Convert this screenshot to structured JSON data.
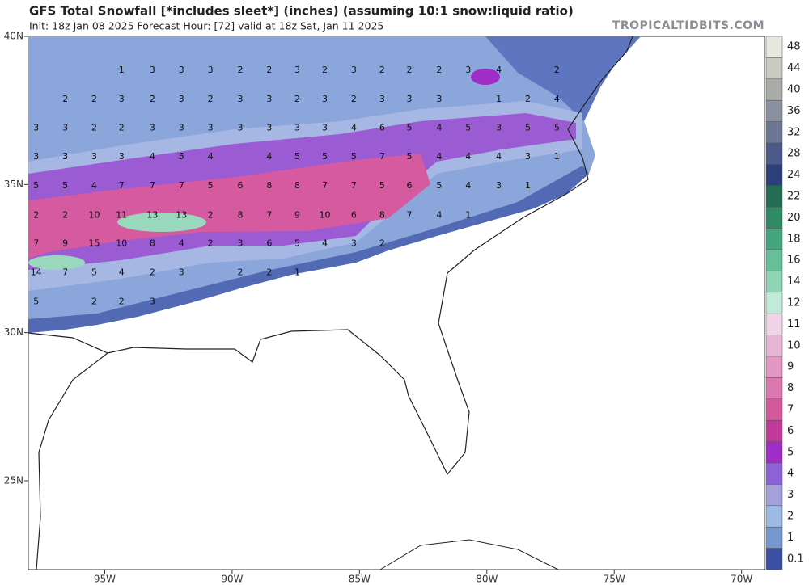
{
  "header": {
    "title": "GFS Total Snowfall [*includes sleet*] (inches) (assuming 10:1 snow:liquid ratio)",
    "subtitle": "Init: 18z Jan 08 2025   Forecast Hour: [72]   valid at 18z Sat, Jan 11 2025",
    "source": "TROPICALTIDBITS.COM"
  },
  "map": {
    "xlim": [
      -98,
      -69.1
    ],
    "ylim": [
      22,
      40
    ],
    "xticks": [
      {
        "value": -95,
        "label": "95W"
      },
      {
        "value": -90,
        "label": "90W"
      },
      {
        "value": -85,
        "label": "85W"
      },
      {
        "value": -80,
        "label": "80W"
      },
      {
        "value": -75,
        "label": "75W"
      },
      {
        "value": -70,
        "label": "70W"
      }
    ],
    "yticks": [
      {
        "value": 40,
        "label": "40N"
      },
      {
        "value": 35,
        "label": "35N"
      },
      {
        "value": 30,
        "label": "30N"
      },
      {
        "value": 25,
        "label": "25N"
      }
    ],
    "labels": [
      {
        "lat": 38.85,
        "lon": [
          -94.34,
          -93.13,
          -91.99,
          -90.85,
          -89.68,
          -88.54,
          -87.44,
          -86.36,
          -85.22,
          -84.11,
          -83.04,
          -81.87,
          -80.73,
          -79.53,
          -77.25
        ],
        "values": [
          1,
          3,
          3,
          3,
          2,
          2,
          3,
          2,
          3,
          2,
          2,
          2,
          3,
          4,
          2
        ]
      },
      {
        "lat": 37.87,
        "lon": [
          -96.55,
          -95.41,
          -94.34,
          -93.13,
          -91.99,
          -90.85,
          -89.68,
          -88.54,
          -87.44,
          -86.36,
          -85.22,
          -84.11,
          -83.04,
          -81.87,
          -79.53,
          -78.39,
          -77.25
        ],
        "values": [
          2,
          2,
          3,
          2,
          3,
          2,
          3,
          3,
          2,
          3,
          2,
          3,
          3,
          3,
          1,
          2,
          4
        ]
      },
      {
        "lat": 36.9,
        "lon": [
          -97.69,
          -96.55,
          -95.41,
          -94.34,
          -93.13,
          -91.99,
          -90.85,
          -89.68,
          -88.54,
          -87.44,
          -86.36,
          -85.22,
          -84.11,
          -83.04,
          -81.87,
          -80.73,
          -79.53,
          -78.39,
          -77.25
        ],
        "values": [
          3,
          3,
          2,
          2,
          3,
          3,
          3,
          3,
          3,
          3,
          3,
          4,
          6,
          5,
          4,
          5,
          3,
          5,
          5
        ]
      },
      {
        "lat": 35.93,
        "lon": [
          -97.69,
          -96.55,
          -95.41,
          -94.34,
          -93.13,
          -91.99,
          -90.85,
          -88.54,
          -87.44,
          -86.36,
          -85.22,
          -84.11,
          -83.04,
          -81.87,
          -80.73,
          -79.53,
          -78.39,
          -77.25
        ],
        "values": [
          3,
          3,
          3,
          3,
          4,
          5,
          4,
          4,
          5,
          5,
          5,
          7,
          5,
          4,
          4,
          4,
          3,
          1
        ]
      },
      {
        "lat": 34.95,
        "lon": [
          -97.69,
          -96.55,
          -95.41,
          -94.34,
          -93.13,
          -91.99,
          -90.85,
          -89.68,
          -88.54,
          -87.44,
          -86.36,
          -85.22,
          -84.11,
          -83.04,
          -81.87,
          -80.73,
          -79.53,
          -78.39
        ],
        "values": [
          5,
          5,
          4,
          7,
          7,
          7,
          5,
          6,
          8,
          8,
          7,
          7,
          5,
          6,
          5,
          4,
          3,
          1
        ]
      },
      {
        "lat": 33.96,
        "lon": [
          -97.69,
          -96.55,
          -95.41,
          -94.34,
          -93.13,
          -91.99,
          -90.85,
          -89.68,
          -88.54,
          -87.44,
          -86.36,
          -85.22,
          -84.11,
          -83.04,
          -81.87,
          -80.73
        ],
        "values": [
          2,
          2,
          10,
          11,
          13,
          13,
          2,
          8,
          7,
          9,
          10,
          6,
          8,
          7,
          4,
          1
        ]
      },
      {
        "lat": 33.0,
        "lon": [
          -97.69,
          -96.55,
          -95.41,
          -94.34,
          -93.13,
          -91.99,
          -90.85,
          -89.68,
          -88.54,
          -87.44,
          -86.36,
          -85.22,
          -84.11
        ],
        "values": [
          7,
          9,
          15,
          10,
          8,
          4,
          2,
          3,
          6,
          5,
          4,
          3,
          2
        ]
      },
      {
        "lat": 32.02,
        "lon": [
          -97.69,
          -96.55,
          -95.41,
          -94.34,
          -93.13,
          -91.99,
          -89.68,
          -88.54,
          -87.44
        ],
        "values": [
          14,
          7,
          5,
          4,
          2,
          3,
          2,
          2,
          1
        ]
      },
      {
        "lat": 31.04,
        "lon": [
          -97.69,
          -95.41,
          -94.34,
          -93.13
        ],
        "values": [
          5,
          2,
          2,
          3
        ]
      }
    ]
  },
  "colorbar": {
    "levels": [
      {
        "value": 48,
        "label": "48"
      },
      {
        "value": 44,
        "label": "44"
      },
      {
        "value": 40,
        "label": "40"
      },
      {
        "value": 36,
        "label": "36"
      },
      {
        "value": 32,
        "label": "32"
      },
      {
        "value": 28,
        "label": "28"
      },
      {
        "value": 24,
        "label": "24"
      },
      {
        "value": 22,
        "label": "22"
      },
      {
        "value": 20,
        "label": "20"
      },
      {
        "value": 18,
        "label": "18"
      },
      {
        "value": 16,
        "label": "16"
      },
      {
        "value": 14,
        "label": "14"
      },
      {
        "value": 12,
        "label": "12"
      },
      {
        "value": 11,
        "label": "11"
      },
      {
        "value": 10,
        "label": "10"
      },
      {
        "value": 9,
        "label": "9"
      },
      {
        "value": 8,
        "label": "8"
      },
      {
        "value": 7,
        "label": "7"
      },
      {
        "value": 6,
        "label": "6"
      },
      {
        "value": 5,
        "label": "5"
      },
      {
        "value": 4,
        "label": "4"
      },
      {
        "value": 3,
        "label": "3"
      },
      {
        "value": 2,
        "label": "2"
      },
      {
        "value": 1,
        "label": "1"
      },
      {
        "value": 0.1,
        "label": "0.1"
      }
    ],
    "colors": [
      "#e6e9de",
      "#c7cbc2",
      "#a9aca9",
      "#8b91a0",
      "#6c7796",
      "#4b5a88",
      "#2d3f78",
      "#236d52",
      "#2f8a66",
      "#44a57e",
      "#66bf98",
      "#8fd4b5",
      "#c2ead9",
      "#f0d4e8",
      "#e8b4d6",
      "#e397c3",
      "#dc78b0",
      "#d4589c",
      "#c13a9a",
      "#a02ec6",
      "#8c62d6",
      "#a5a0dc",
      "#9cbae2",
      "#7797cf",
      "#3c4ea2"
    ]
  }
}
